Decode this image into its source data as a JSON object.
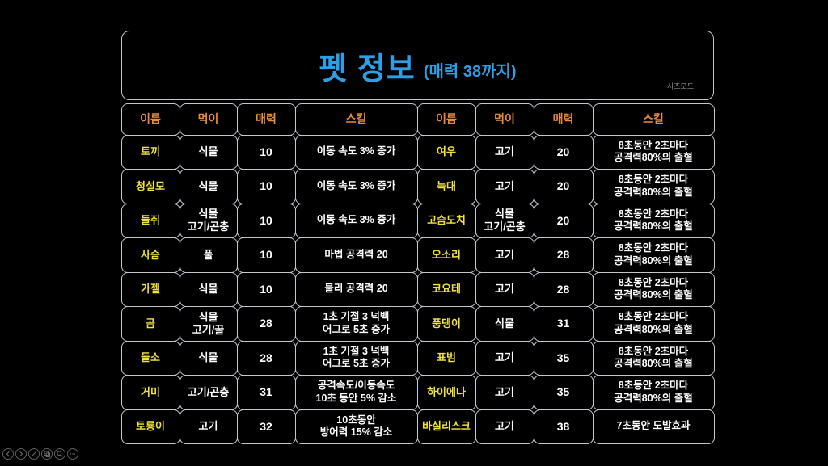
{
  "title": {
    "main": "펫 정보",
    "subtitle": "(매력 38까지)",
    "watermark": "시즈모드"
  },
  "table": {
    "headers": [
      "이름",
      "먹이",
      "매력",
      "스킬"
    ],
    "left_rows": [
      {
        "name": "토끼",
        "food": "식물",
        "charm": "10",
        "skill": "이동 속도 3% 증가"
      },
      {
        "name": "청설모",
        "food": "식물",
        "charm": "10",
        "skill": "이동 속도 3% 증가"
      },
      {
        "name": "들쥐",
        "food": "식물\n고기/곤충",
        "charm": "10",
        "skill": "이동 속도 3% 증가"
      },
      {
        "name": "사슴",
        "food": "풀",
        "charm": "10",
        "skill": "마법 공격력 20"
      },
      {
        "name": "가젤",
        "food": "식물",
        "charm": "10",
        "skill": "물리 공격력 20"
      },
      {
        "name": "곰",
        "food": "식물\n고기/꿀",
        "charm": "28",
        "skill": "1초 기절 3 넉백\n어그로 5초 증가"
      },
      {
        "name": "들소",
        "food": "식물",
        "charm": "28",
        "skill": "1초 기절 3 넉백\n어그로 5초 증가"
      },
      {
        "name": "거미",
        "food": "고기/곤충",
        "charm": "31",
        "skill": "공격속도/이동속도\n10초 동안 5% 감소"
      },
      {
        "name": "토룡이",
        "food": "고기",
        "charm": "32",
        "skill": "10초동안\n방어력 15% 감소"
      }
    ],
    "right_rows": [
      {
        "name": "여우",
        "food": "고기",
        "charm": "20",
        "skill": "8초동안 2초마다\n공격력80%의 출혈"
      },
      {
        "name": "늑대",
        "food": "고기",
        "charm": "20",
        "skill": "8초동안 2초마다\n공격력80%의 출혈"
      },
      {
        "name": "고슴도치",
        "food": "식물\n고기/곤충",
        "charm": "20",
        "skill": "8초동안 2초마다\n공격력80%의 출혈"
      },
      {
        "name": "오소리",
        "food": "고기",
        "charm": "28",
        "skill": "8초동안 2초마다\n공격력80%의 출혈"
      },
      {
        "name": "코요테",
        "food": "고기",
        "charm": "28",
        "skill": "8초동안 2초마다\n공격력80%의 출혈"
      },
      {
        "name": "풍뎅이",
        "food": "식물",
        "charm": "31",
        "skill": "8초동안 2초마다\n공격력80%의 출혈"
      },
      {
        "name": "표범",
        "food": "고기",
        "charm": "35",
        "skill": "8초동안 2초마다\n공격력80%의 출혈"
      },
      {
        "name": "하이에나",
        "food": "고기",
        "charm": "35",
        "skill": "8초동안 2초마다\n공격력80%의 출혈"
      },
      {
        "name": "바실리스크",
        "food": "고기",
        "charm": "38",
        "skill": "7초동안 도발효과"
      }
    ]
  },
  "toolbar": {
    "icons": [
      "prev-arrow",
      "next-arrow",
      "edit-pencil",
      "copy-pages",
      "zoom-magnifier",
      "more-ellipsis"
    ]
  },
  "colors": {
    "background": "#000000",
    "title_blue": "#2ba0e6",
    "header_orange": "#e98a3c",
    "name_yellow": "#efe23b",
    "cell_border": "#c2c7ce",
    "toolbar_gray": "#6a6a6a"
  }
}
